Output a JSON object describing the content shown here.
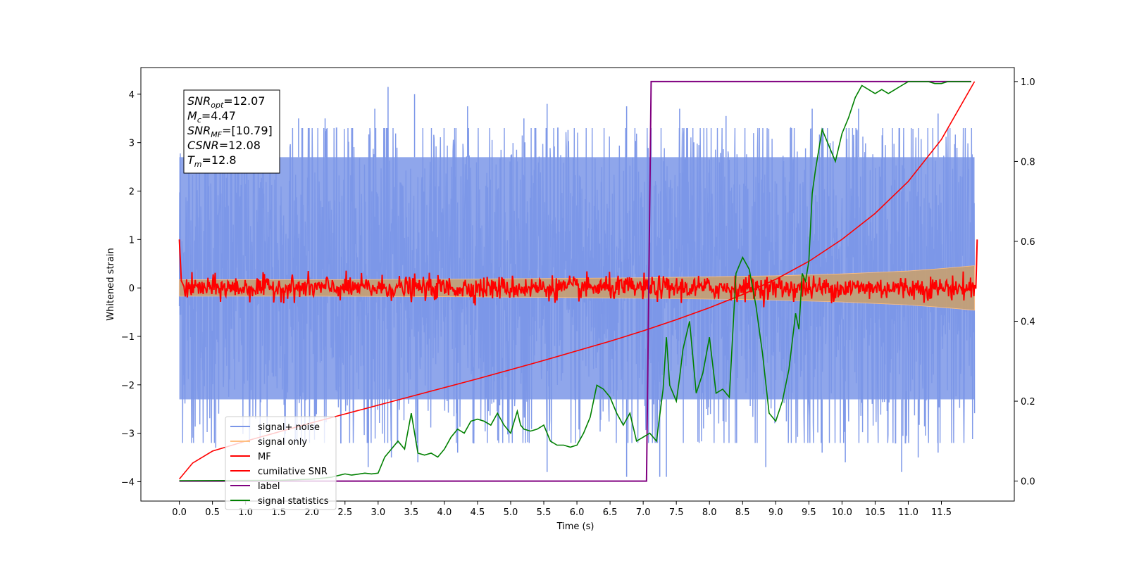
{
  "chart_data": {
    "type": "line",
    "xlabel": "Time (s)",
    "ylabel": "Whitened strain",
    "xlim": [
      -0.58,
      12.6
    ],
    "ylim": [
      -4.4,
      4.55
    ],
    "y2lim": [
      -0.05,
      1.035
    ],
    "x_ticks": [
      0.0,
      0.5,
      1.0,
      1.5,
      2.0,
      2.5,
      3.0,
      3.5,
      4.0,
      4.5,
      5.0,
      5.5,
      6.0,
      6.5,
      7.0,
      7.5,
      8.0,
      8.5,
      9.0,
      9.5,
      10.0,
      10.5,
      11.0,
      11.5
    ],
    "x_tick_labels": [
      "0.0",
      "0.5",
      "1.0",
      "1.5",
      "2.0",
      "2.5",
      "3.0",
      "3.5",
      "4.0",
      "4.5",
      "5.0",
      "5.5",
      "6.0",
      "6.5",
      "7.0",
      "7.5",
      "8.0",
      "8.5",
      "9.0",
      "9.5",
      "10.0",
      "10.5",
      "11.0",
      "11.5"
    ],
    "y_ticks": [
      4,
      3,
      2,
      1,
      0,
      -1,
      -2,
      -3,
      -4
    ],
    "y_tick_labels": [
      "4",
      "3",
      "2",
      "1",
      "0",
      "−1",
      "−2",
      "−3",
      "−4"
    ],
    "y2_ticks": [
      1.0,
      0.8,
      0.6,
      0.4,
      0.2,
      0.0
    ],
    "y2_tick_labels": [
      "1.0",
      "0.8",
      "0.6",
      "0.4",
      "0.2",
      "0.0"
    ],
    "grid": false,
    "legend_position": "lower-left",
    "legend": [
      {
        "label": "signal+ noise",
        "color": "#7b96e8"
      },
      {
        "label": "signal only",
        "color": "#ffbf80"
      },
      {
        "label": "MF",
        "color": "#ff0000"
      },
      {
        "label": "cumilative SNR",
        "color": "#ff0000"
      },
      {
        "label": "label",
        "color": "#800080"
      },
      {
        "label": "signal statistics",
        "color": "#008000"
      }
    ],
    "annotation": {
      "snr_opt": {
        "base": "SNR",
        "sub": "opt",
        "value": "=12.07"
      },
      "mc": {
        "base": "M",
        "sub": "c",
        "value": "=4.47"
      },
      "snr_mf": {
        "base": "SNR",
        "sub": "MF",
        "value": "=[10.79]"
      },
      "csnr": {
        "base": "CSNR",
        "sub": "",
        "value": "=12.08"
      },
      "tm": {
        "base": "T",
        "sub": "m",
        "value": "=12.8"
      }
    },
    "series": [
      {
        "name": "signal+ noise",
        "axis": "left",
        "color": "#7b96e8",
        "x_range": [
          0.0,
          12.0
        ],
        "band": [
          -2.3,
          2.7
        ],
        "extremes_high": [
          [
            3.15,
            4.15
          ],
          [
            3.55,
            4.0
          ],
          [
            5.55,
            3.8
          ],
          [
            1.45,
            3.6
          ],
          [
            2.95,
            3.7
          ],
          [
            7.55,
            3.7
          ],
          [
            6.75,
            3.75
          ],
          [
            4.35,
            3.75
          ],
          [
            9.55,
            3.7
          ],
          [
            11.45,
            3.6
          ],
          [
            8.25,
            3.55
          ],
          [
            10.25,
            3.7
          ],
          [
            1.8,
            3.5
          ],
          [
            2.2,
            3.5
          ],
          [
            5.2,
            3.5
          ]
        ],
        "extremes_low": [
          [
            6.75,
            -3.9
          ],
          [
            7.25,
            -3.9
          ],
          [
            7.35,
            -3.9
          ],
          [
            8.85,
            -3.7
          ],
          [
            10.05,
            -3.6
          ],
          [
            10.9,
            -3.8
          ],
          [
            11.45,
            -3.4
          ],
          [
            2.85,
            -3.7
          ],
          [
            3.2,
            -3.5
          ],
          [
            5.55,
            -3.8
          ],
          [
            0.55,
            -3.3
          ],
          [
            4.2,
            -3.4
          ],
          [
            9.7,
            -3.4
          ],
          [
            11.15,
            -3.5
          ],
          [
            3.6,
            -3.6
          ]
        ]
      },
      {
        "name": "signal only",
        "axis": "left",
        "color": "#ffbf80",
        "x": [
          0.0,
          2.0,
          4.0,
          6.0,
          7.0,
          8.0,
          9.0,
          10.0,
          11.0,
          11.5,
          12.0
        ],
        "amplitude": [
          0.17,
          0.17,
          0.18,
          0.2,
          0.21,
          0.23,
          0.25,
          0.29,
          0.35,
          0.4,
          0.46
        ]
      },
      {
        "name": "MF",
        "axis": "left",
        "color": "#ff0000",
        "x": [
          0.0,
          0.03,
          0.08,
          12.0,
          12.02,
          12.04
        ],
        "y": [
          1.0,
          0.15,
          0.0,
          0.0,
          0.0,
          1.0
        ],
        "jitter": 0.12
      },
      {
        "name": "cumilative SNR",
        "axis": "right",
        "color": "#ff0000",
        "x": [
          0.0,
          0.2,
          0.5,
          1.0,
          1.5,
          2.0,
          2.5,
          3.0,
          3.5,
          4.0,
          4.5,
          5.0,
          5.5,
          6.0,
          6.5,
          7.0,
          7.5,
          8.0,
          8.5,
          9.0,
          9.5,
          10.0,
          10.5,
          11.0,
          11.5,
          12.0
        ],
        "y": [
          0.005,
          0.045,
          0.075,
          0.1,
          0.123,
          0.146,
          0.168,
          0.19,
          0.212,
          0.234,
          0.256,
          0.279,
          0.302,
          0.326,
          0.35,
          0.376,
          0.404,
          0.434,
          0.467,
          0.505,
          0.55,
          0.605,
          0.67,
          0.75,
          0.855,
          1.0
        ]
      },
      {
        "name": "label",
        "axis": "right",
        "color": "#800080",
        "x": [
          0.0,
          7.05,
          7.12,
          11.95
        ],
        "y": [
          0.0,
          0.0,
          1.0,
          1.0
        ]
      },
      {
        "name": "signal statistics",
        "axis": "right",
        "color": "#008000",
        "x": [
          0.0,
          1.5,
          2.0,
          2.2,
          2.3,
          2.5,
          2.6,
          2.8,
          2.9,
          3.0,
          3.1,
          3.2,
          3.3,
          3.4,
          3.5,
          3.55,
          3.6,
          3.7,
          3.8,
          3.9,
          4.0,
          4.1,
          4.2,
          4.3,
          4.4,
          4.5,
          4.6,
          4.7,
          4.8,
          4.9,
          5.0,
          5.1,
          5.15,
          5.2,
          5.3,
          5.4,
          5.5,
          5.6,
          5.7,
          5.8,
          5.9,
          6.0,
          6.1,
          6.2,
          6.3,
          6.4,
          6.5,
          6.6,
          6.7,
          6.8,
          6.9,
          7.0,
          7.1,
          7.2,
          7.3,
          7.35,
          7.4,
          7.5,
          7.55,
          7.6,
          7.7,
          7.8,
          7.9,
          8.0,
          8.1,
          8.2,
          8.3,
          8.4,
          8.5,
          8.6,
          8.7,
          8.8,
          8.9,
          9.0,
          9.1,
          9.2,
          9.3,
          9.35,
          9.4,
          9.45,
          9.5,
          9.55,
          9.6,
          9.7,
          9.8,
          9.9,
          10.0,
          10.1,
          10.2,
          10.3,
          10.4,
          10.5,
          10.6,
          10.7,
          10.8,
          10.9,
          11.0,
          11.1,
          11.2,
          11.3,
          11.4,
          11.5,
          11.6,
          11.7,
          11.8,
          11.9,
          11.95
        ],
        "y": [
          0.001,
          0.002,
          0.005,
          0.008,
          0.01,
          0.018,
          0.015,
          0.02,
          0.018,
          0.02,
          0.06,
          0.08,
          0.1,
          0.08,
          0.17,
          0.12,
          0.07,
          0.065,
          0.07,
          0.06,
          0.08,
          0.11,
          0.13,
          0.12,
          0.15,
          0.155,
          0.15,
          0.14,
          0.17,
          0.14,
          0.12,
          0.175,
          0.14,
          0.13,
          0.125,
          0.13,
          0.14,
          0.1,
          0.09,
          0.09,
          0.085,
          0.09,
          0.12,
          0.16,
          0.24,
          0.23,
          0.21,
          0.17,
          0.14,
          0.17,
          0.1,
          0.11,
          0.12,
          0.1,
          0.23,
          0.36,
          0.24,
          0.2,
          0.26,
          0.33,
          0.4,
          0.22,
          0.27,
          0.36,
          0.22,
          0.23,
          0.21,
          0.52,
          0.56,
          0.53,
          0.44,
          0.32,
          0.17,
          0.15,
          0.2,
          0.28,
          0.42,
          0.38,
          0.52,
          0.5,
          0.55,
          0.72,
          0.78,
          0.88,
          0.84,
          0.8,
          0.87,
          0.91,
          0.96,
          0.99,
          0.98,
          0.97,
          0.98,
          0.97,
          0.98,
          0.99,
          1.0,
          1.0,
          1.0,
          1.0,
          0.995,
          0.995,
          1.0,
          1.0,
          1.0,
          1.0,
          1.0
        ]
      }
    ]
  }
}
